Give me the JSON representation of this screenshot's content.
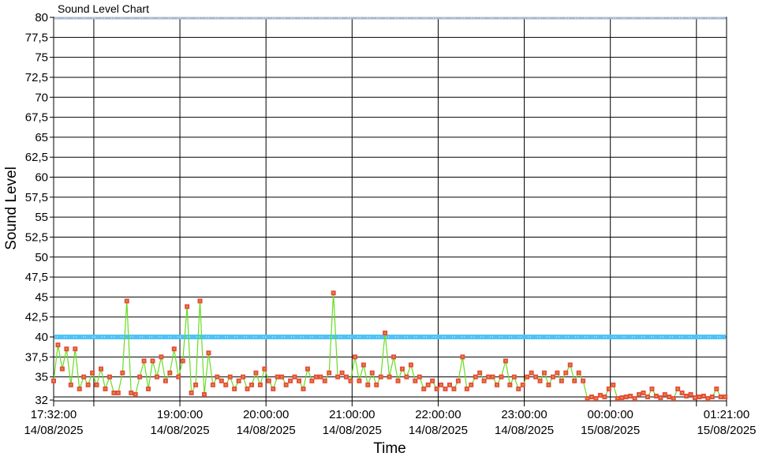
{
  "chart_data": {
    "type": "line",
    "title": "Sound Level Chart",
    "xlabel": "Time",
    "ylabel": "Sound Level",
    "ylim": [
      32,
      80
    ],
    "xlim": [
      "14/08/2025 17:32:00",
      "15/08/2025 01:21:00"
    ],
    "y_ticks": [
      "80",
      "77,5",
      "75",
      "72,5",
      "70",
      "67,5",
      "65",
      "62,5",
      "60",
      "57,5",
      "55",
      "52,5",
      "50",
      "47,5",
      "45",
      "42,5",
      "40",
      "37,5",
      "35",
      "32"
    ],
    "x_ticks": [
      {
        "time": "17:32:00",
        "date": "14/08/2025"
      },
      {
        "time": "",
        "date": ""
      },
      {
        "time": "19:00:00",
        "date": "14/08/2025"
      },
      {
        "time": "20:00:00",
        "date": "14/08/2025"
      },
      {
        "time": "21:00:00",
        "date": "14/08/2025"
      },
      {
        "time": "22:00:00",
        "date": "14/08/2025"
      },
      {
        "time": "23:00:00",
        "date": "14/08/2025"
      },
      {
        "time": "00:00:00",
        "date": "15/08/2025"
      },
      {
        "time": "",
        "date": ""
      },
      {
        "time": "01:21:00",
        "date": "15/08/2025"
      }
    ],
    "grid": true,
    "threshold_lines": [
      {
        "value": 40,
        "color": "#4fc3f7"
      },
      {
        "value": 80,
        "color": "#a8b4c8"
      }
    ],
    "series_colors": {
      "line": "#66dd22",
      "marker": "#e84c3d",
      "marker_center": "#c8b030"
    },
    "sample_interval_minutes": 3,
    "start": "14/08/2025 17:32:00",
    "values": [
      34.5,
      39,
      36,
      38.5,
      34,
      38.5,
      33.5,
      35,
      34,
      35.5,
      34,
      36,
      33.5,
      35,
      33,
      33,
      35.5,
      44.5,
      33,
      32.8,
      35,
      37,
      33.5,
      37,
      35,
      37.5,
      34.5,
      35.5,
      38.5,
      35,
      37,
      43.8,
      33,
      34,
      44.5,
      32.8,
      38,
      34,
      35,
      34.5,
      34,
      35,
      33.5,
      34.5,
      35,
      33.5,
      34,
      35.5,
      34,
      36,
      34.5,
      33.5,
      35,
      35,
      34,
      34.5,
      35,
      34.5,
      33.5,
      36,
      34.5,
      35,
      35,
      34.5,
      35.5,
      45.5,
      35,
      35.5,
      35,
      34.5,
      37.5,
      34.5,
      36.5,
      34,
      35.5,
      34,
      35,
      40.5,
      35,
      37.5,
      34.5,
      36,
      35,
      36.5,
      34.5,
      35,
      33.5,
      34,
      34.5,
      33.5,
      34,
      33.5,
      34,
      33.5,
      34.5,
      37.5,
      33.5,
      34,
      35,
      35.5,
      34.5,
      35,
      35,
      34,
      35,
      37,
      34,
      35,
      33.5,
      34,
      35,
      35.5,
      35,
      34.5,
      35.5,
      34,
      35,
      35.5,
      34.5,
      35.5,
      36.5,
      34.5,
      35.5,
      34.5,
      32.3,
      32.5,
      32.3,
      32.7,
      32.5,
      33.5,
      34,
      32.3,
      32.4,
      32.5,
      32.6,
      32.3,
      32.8,
      33,
      32.5,
      33.5,
      32.6,
      32.4,
      32.8,
      32.5,
      32.3,
      33.5,
      33,
      32.6,
      32.8,
      32.4,
      32.5,
      32.6,
      32.3,
      32.5,
      33.5,
      32.5,
      32.5
    ]
  }
}
